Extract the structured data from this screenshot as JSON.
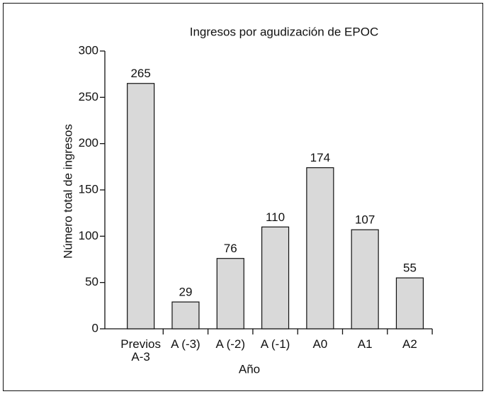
{
  "chart_data": {
    "type": "bar",
    "title": "Ingresos por agudización de EPOC",
    "x_label": "Año",
    "y_label": "Número total de ingresos",
    "categories": [
      "Previos\nA-3",
      "A (-3)",
      "A (-2)",
      "A (-1)",
      "A0",
      "A1",
      "A2"
    ],
    "values": [
      265,
      29,
      76,
      110,
      174,
      107,
      55
    ],
    "color": "#d9d9d9",
    "ylim": [
      0,
      300
    ],
    "yticks": [
      0,
      50,
      100,
      150,
      200,
      250,
      300
    ]
  }
}
